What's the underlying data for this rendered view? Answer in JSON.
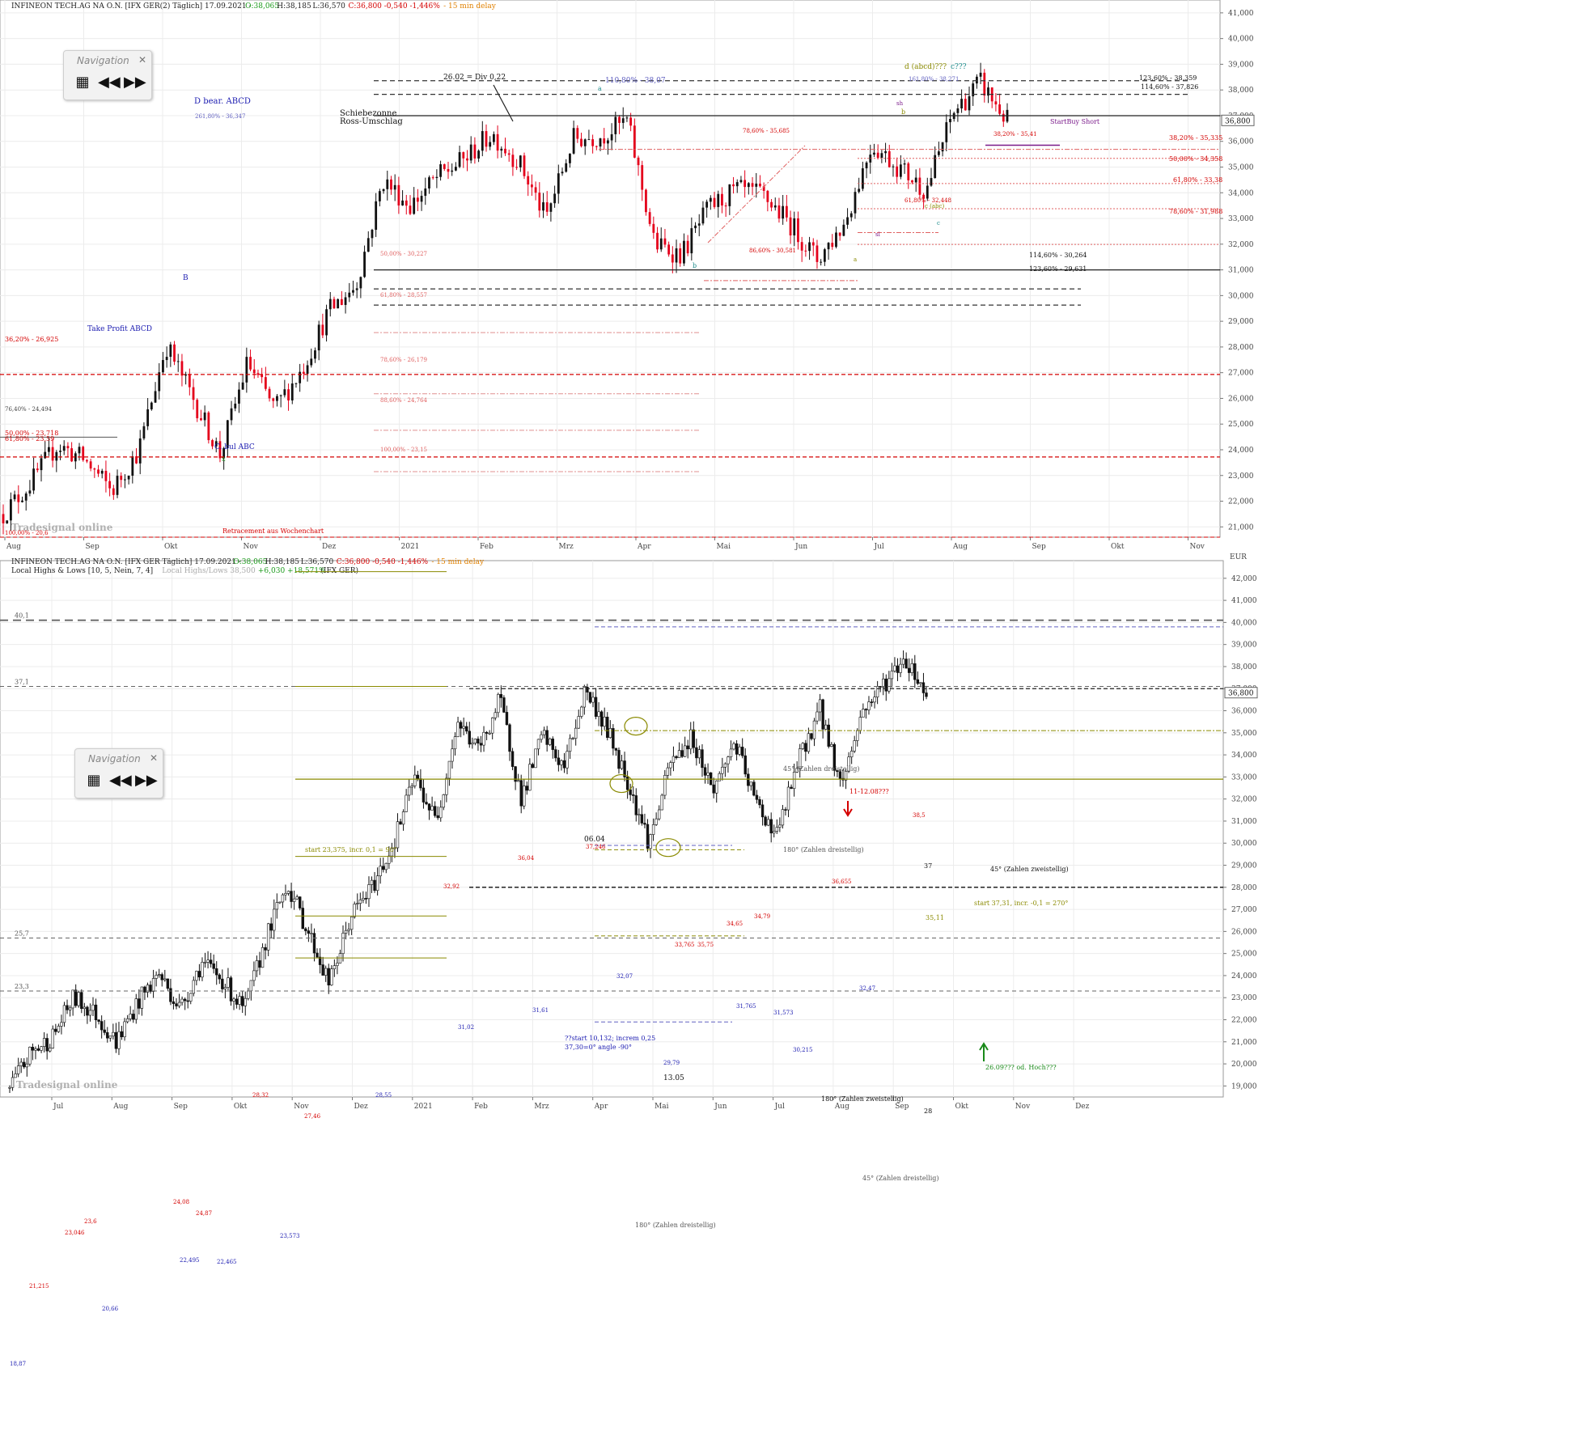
{
  "charts": [
    {
      "header": "INFINEON TECH.AG NA O.N. [IFX GER(2) Täglich] 17.09.2021 - ",
      "ohlc": {
        "o": "O:38,065",
        "h": "H:38,185",
        "l": "L:36,570",
        "c": "C:36,800 -0,540 -1,446%",
        "delay": "- 15 min delay"
      },
      "currency": "EUR",
      "price_tag": "36,800",
      "months": [
        "Aug",
        "Sep",
        "Okt",
        "Nov",
        "Dez",
        "2021",
        "Feb",
        "Mrz",
        "Apr",
        "Mai",
        "Jun",
        "Jul",
        "Aug",
        "Sep",
        "Okt",
        "Nov"
      ],
      "y_ticks": [
        "41,000",
        "40,000",
        "39,000",
        "38,000",
        "37,000",
        "36,000",
        "35,000",
        "34,000",
        "33,000",
        "32,000",
        "31,000",
        "30,000",
        "29,000",
        "28,000",
        "27,000",
        "26,000",
        "25,000",
        "24,000",
        "23,000",
        "22,000",
        "21,000"
      ],
      "annotations": [
        "D bear. ABCD",
        "261,80% - 36,347",
        "Schiebezonne",
        "Ross-Umschlag",
        "26.02 = Div 0,22",
        "Take Profit ABCD",
        "36,20% - 26,925",
        "76,40% - 24,494",
        "50,00% - 23,718",
        "61,80% - 23,59",
        "C. bul ABC",
        "x",
        "B",
        "Retracement aus Wochenchart",
        "100,00% - 20,6",
        "61,80% - 19,5",
        "d (abcd)???",
        "c???",
        "123,60% - 38,359",
        "114,60% - 37,826",
        "161,80% - 38,271",
        "110,80% - 38,07",
        "StartBuy Short",
        "78,60% - 35,685",
        "38,20% - 35,41",
        "38,20% - 35,335",
        "50,00% - 34,358",
        "61,80% - 33,38",
        "61,80% - 32,448",
        "c (abc)",
        "78,60% - 31,988",
        "50,00% - 30,227",
        "86,60% - 30,581",
        "114,60% - 30,264",
        "123,60% - 29,631",
        "61,80% - 28,557",
        "78,60% - 26,179",
        "88,60% - 24,764",
        "100,00% - 23,15",
        "a",
        "b",
        "sh",
        "sl",
        "a",
        "b",
        "c"
      ],
      "logo": "Tradesignal online"
    },
    {
      "header": "INFINEON TECH.AG NA O.N. [IFX GER Täglich] 17.09.2021 - ",
      "ohlc": {
        "o": "O:38,065",
        "h": "H:38,185",
        "l": "L:36,570",
        "c": "C:36,800 -0,540 -1,446%",
        "delay": "- 15 min delay"
      },
      "indicator": "Local Highs & Lows [10, 5, Nein, 7, 4]",
      "indicator_value": "Local Highs/Lows 38,500",
      "indicator_change": "+6,030 +18,571%",
      "indicator_suffix": "(IFX GER)",
      "currency": "EUR",
      "price_tag": "36,800",
      "months": [
        "Jul",
        "Aug",
        "Sep",
        "Okt",
        "Nov",
        "Dez",
        "2021",
        "Feb",
        "Mrz",
        "Apr",
        "Mai",
        "Jun",
        "Jul",
        "Aug",
        "Sep",
        "Okt",
        "Nov",
        "Dez"
      ],
      "y_ticks": [
        "42,000",
        "41,000",
        "40,000",
        "39,000",
        "38,000",
        "37,000",
        "36,000",
        "35,000",
        "34,000",
        "33,000",
        "32,000",
        "31,000",
        "30,000",
        "29,000",
        "28,000",
        "27,000",
        "26,000",
        "25,000",
        "24,000",
        "23,000",
        "22,000",
        "21,000",
        "20,000",
        "19,000"
      ],
      "levels_left": [
        "40,1",
        "37,1",
        "25,7",
        "23,3"
      ],
      "annotations": [
        "45° (Zahlen dreistellig)",
        "11-12.08???",
        "180° (Zahlen dreistellig)",
        "06.04",
        "start 23,375, incr. 0,1 = 90°",
        "45° (Zahlen zweistellig)",
        "start 37,31, incr. -0,1 = 270°",
        "35,11",
        "??start 10,132; increm 0,25",
        "37,30=0° angle -90°",
        "26.09??? od. Hoch???",
        "13.05",
        "180° (Zahlen zweistellig)",
        "28",
        "45° (Zahlen dreistellig)",
        "180° (Zahlen dreistellig)",
        "37"
      ],
      "highs": [
        "38,5",
        "37,246",
        "36,655",
        "35,75",
        "36,04",
        "32,92",
        "34,65",
        "34,79",
        "33,765",
        "28,32",
        "27,46",
        "24,87",
        "24,08",
        "23,6",
        "23,046",
        "21,215"
      ],
      "lows": [
        "29,79",
        "31,61",
        "31,02",
        "32,07",
        "31,765",
        "31,573",
        "30,215",
        "32,47",
        "28,55",
        "22,465",
        "22,495",
        "20,66",
        "23,573",
        "18,87"
      ],
      "logo": "Tradesignal online"
    }
  ],
  "chart_data": [
    {
      "type": "candlestick",
      "title": "INFINEON TECH.AG NA O.N. [IFX GER(2) Täglich] 17.09.2021",
      "ylabel": "EUR",
      "ylim": [
        20.6,
        41.5
      ],
      "x": [
        "Aug",
        "Sep",
        "Okt",
        "Nov",
        "Dez",
        "2021",
        "Feb",
        "Mrz",
        "Apr",
        "Mai",
        "Jun",
        "Jul",
        "Aug",
        "Sep"
      ],
      "close_path": [
        21.5,
        22.7,
        24.2,
        23.6,
        22.4,
        24.0,
        28.1,
        26.0,
        23.8,
        27.4,
        25.6,
        27.1,
        29.4,
        30.4,
        34.5,
        33.5,
        34.6,
        35.3,
        36.3,
        35.2,
        33.0,
        36.1,
        36.2,
        36.8,
        32.0,
        31.6,
        33.4,
        34.1,
        33.9,
        32.8,
        31.4,
        32.8,
        35.9,
        35.0,
        34.1,
        37.1,
        38.3,
        36.8
      ],
      "grid": true
    },
    {
      "type": "candlestick",
      "title": "INFINEON TECH.AG NA O.N. [IFX GER Täglich] 17.09.2021",
      "ylabel": "EUR",
      "ylim": [
        18.5,
        42.8
      ],
      "x": [
        "Jul",
        "Aug",
        "Sep",
        "Okt",
        "Nov",
        "Dez",
        "2021",
        "Feb",
        "Mrz",
        "Apr",
        "Mai",
        "Jun",
        "Jul",
        "Aug",
        "Sep"
      ],
      "close_path": [
        18.9,
        20.5,
        21.2,
        23.0,
        22.3,
        21.0,
        22.8,
        24.1,
        22.5,
        24.6,
        23.8,
        22.4,
        25.6,
        28.2,
        26.0,
        23.6,
        26.7,
        28.0,
        30.0,
        33.0,
        31.0,
        35.5,
        34.2,
        36.5,
        32.0,
        34.9,
        33.4,
        37.0,
        35.2,
        32.8,
        30.0,
        33.6,
        34.8,
        32.4,
        34.6,
        31.8,
        30.4,
        33.7,
        36.1,
        32.6,
        36.0,
        37.2,
        38.4,
        36.8
      ],
      "grid": true
    }
  ]
}
